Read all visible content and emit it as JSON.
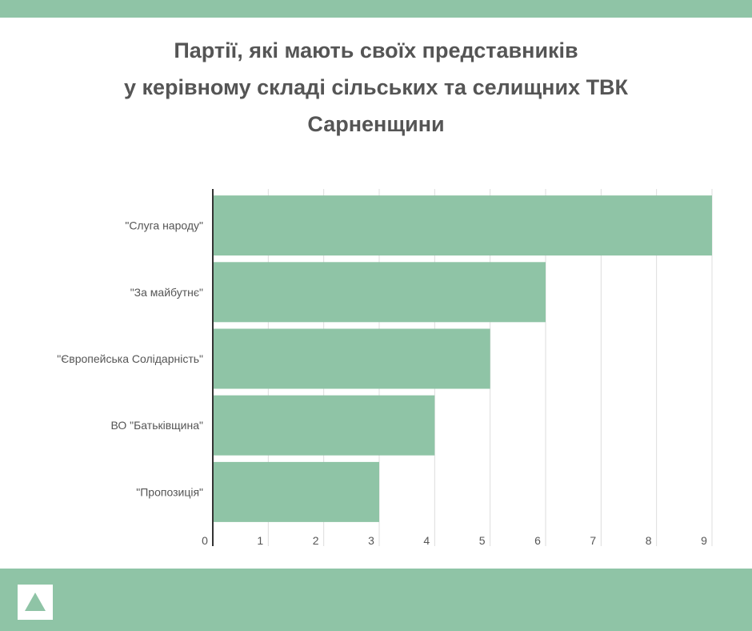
{
  "title_lines": [
    "Партії, які мають своїх представників",
    "у керівному складі сільських та селищних ТВК",
    "Сарненщини"
  ],
  "colors": {
    "accent": "#8fc4a6",
    "bar": "#8fc4a6",
    "text": "#555555",
    "grid": "#dddddd",
    "axis": "#333333"
  },
  "logo": {
    "icon": "triangle-logo-icon"
  },
  "chart_data": {
    "type": "bar",
    "orientation": "horizontal",
    "categories": [
      "\"Слуга народу\"",
      "\"За майбутнє\"",
      "\"Європейська Солідарність\"",
      "ВО \"Батьківщина\"",
      "\"Пропозиція\""
    ],
    "values": [
      9,
      6,
      5,
      4,
      3
    ],
    "xlim": [
      0,
      9
    ],
    "xticks": [
      "0",
      "1",
      "2",
      "3",
      "4",
      "5",
      "6",
      "7",
      "8",
      "9"
    ],
    "grid": true,
    "legend": "none"
  }
}
